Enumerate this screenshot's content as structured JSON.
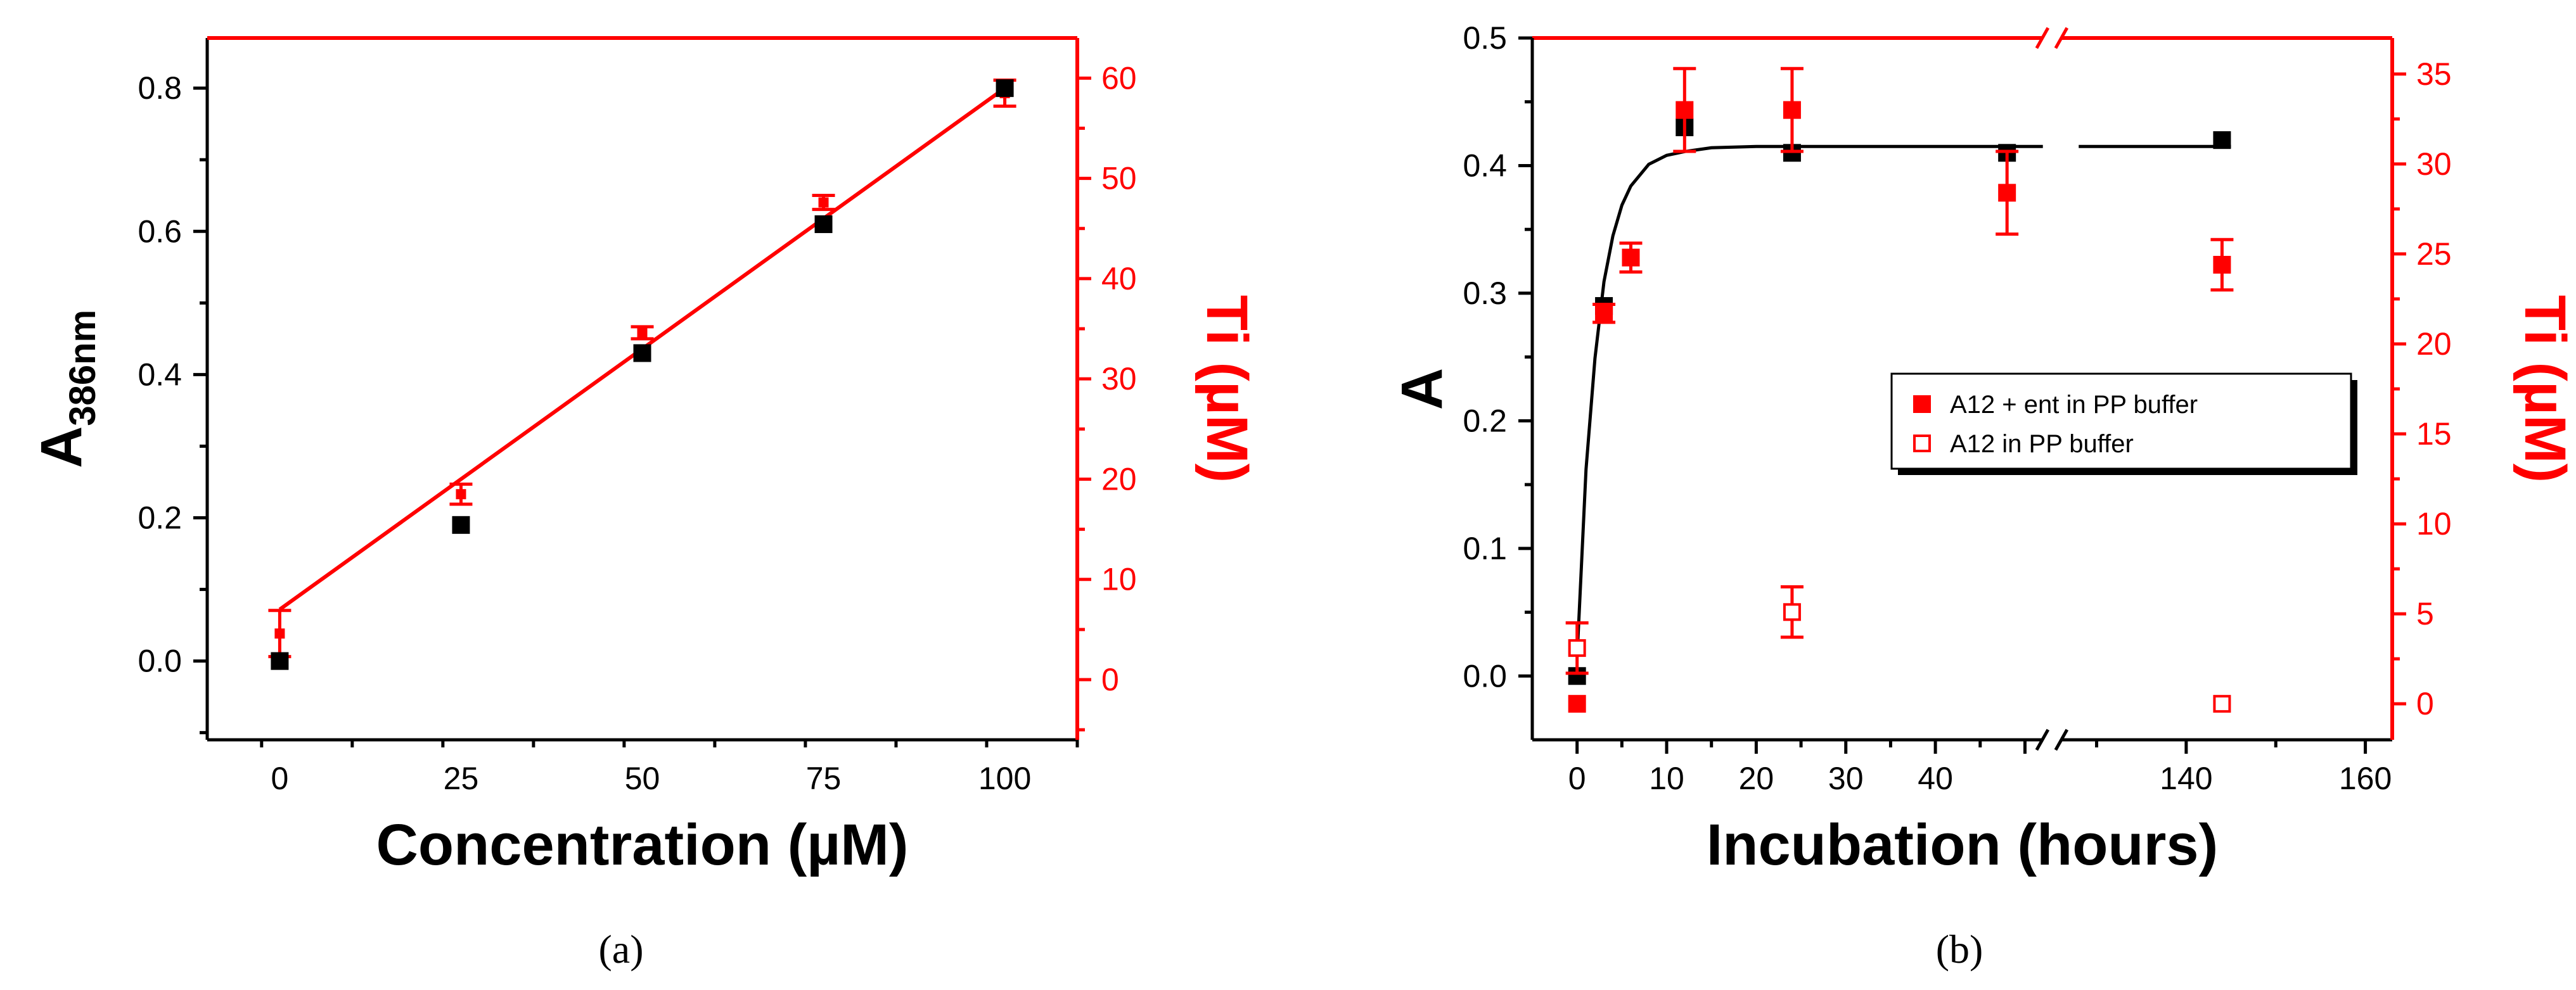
{
  "chart_data": [
    {
      "type": "scatter",
      "panel_label": "(a)",
      "xlabel": "Concentration (µM)",
      "ylabel": {
        "main": "A",
        "sub": "386nm"
      },
      "ylabel_right": "Ti (µM)",
      "xlim": [
        -10,
        110
      ],
      "ylim": [
        -0.11,
        0.87
      ],
      "ylim_right": [
        -6,
        64
      ],
      "x_ticks": [
        0,
        25,
        50,
        75,
        100
      ],
      "y_ticks": [
        0.0,
        0.2,
        0.4,
        0.6,
        0.8
      ],
      "y_ticks_right": [
        0,
        10,
        20,
        30,
        40,
        50,
        60
      ],
      "colors": {
        "left": "#000000",
        "right": "#ff0000"
      },
      "series": [
        {
          "name": "A386nm",
          "axis": "left",
          "color": "#000000",
          "marker": "filled-square",
          "x": [
            0,
            25,
            50,
            75,
            100
          ],
          "y": [
            0.0,
            0.19,
            0.43,
            0.61,
            0.8
          ]
        },
        {
          "name": "Ti",
          "axis": "right",
          "color": "#ff0000",
          "marker": "filled-square",
          "x": [
            0,
            25,
            50,
            75,
            100
          ],
          "y": [
            4.6,
            18.5,
            34.6,
            47.6,
            58.5
          ],
          "err": [
            2.3,
            1.0,
            0.6,
            0.7,
            1.3
          ]
        }
      ],
      "fit": {
        "axis": "right",
        "color": "#ff0000",
        "x": [
          0,
          100
        ],
        "y": [
          7.0,
          59.0
        ]
      }
    },
    {
      "type": "scatter",
      "panel_label": "(b)",
      "xlabel": "Incubation (hours)",
      "ylabel": "A",
      "ylabel_right": "Ti (µM)",
      "x_break": {
        "from": 53,
        "to": 125
      },
      "xlim": [
        -5,
        163
      ],
      "ylim": [
        -0.05,
        0.5
      ],
      "ylim_right": [
        -2,
        37
      ],
      "x_ticks": [
        0,
        10,
        20,
        30,
        40,
        140,
        160
      ],
      "y_ticks": [
        0.0,
        0.1,
        0.2,
        0.3,
        0.4,
        0.5
      ],
      "y_ticks_right": [
        0,
        5,
        10,
        15,
        20,
        25,
        30,
        35
      ],
      "colors": {
        "left": "#000000",
        "right": "#ff0000"
      },
      "legend": [
        "A12 + ent in PP buffer",
        "A12 in PP buffer"
      ],
      "series": [
        {
          "name": "A",
          "axis": "left",
          "color": "#000000",
          "marker": "filled-square",
          "x": [
            0,
            3,
            12,
            24,
            48,
            144
          ],
          "y": [
            0.0,
            0.29,
            0.43,
            0.41,
            0.41,
            0.42
          ]
        },
        {
          "name": "A12 + ent in PP buffer",
          "axis": "right",
          "color": "#ff0000",
          "marker": "filled-square",
          "x": [
            0,
            3,
            6,
            12,
            24,
            48,
            144
          ],
          "y": [
            0.0,
            21.7,
            24.8,
            33.0,
            33.0,
            28.4,
            24.4
          ],
          "err": [
            0.0,
            0.5,
            0.8,
            2.3,
            2.3,
            2.3,
            1.4
          ]
        },
        {
          "name": "A12 in PP buffer",
          "axis": "right",
          "color": "#ff0000",
          "marker": "open-square",
          "x": [
            0,
            24,
            144
          ],
          "y": [
            3.1,
            5.1,
            0.0
          ],
          "err": [
            1.4,
            1.4,
            0.0
          ]
        }
      ],
      "fit": {
        "axis": "left",
        "color": "#000000",
        "x": [
          0,
          1,
          2,
          3,
          4,
          5,
          6,
          8,
          10,
          12,
          15,
          20,
          25,
          30,
          40,
          48,
          52
        ],
        "y": [
          0.015,
          0.162,
          0.249,
          0.309,
          0.345,
          0.369,
          0.384,
          0.401,
          0.408,
          0.411,
          0.414,
          0.415,
          0.415,
          0.415,
          0.415,
          0.415,
          0.415
        ],
        "x_tail": [
          128,
          145
        ],
        "y_tail": [
          0.415,
          0.415
        ]
      }
    }
  ]
}
